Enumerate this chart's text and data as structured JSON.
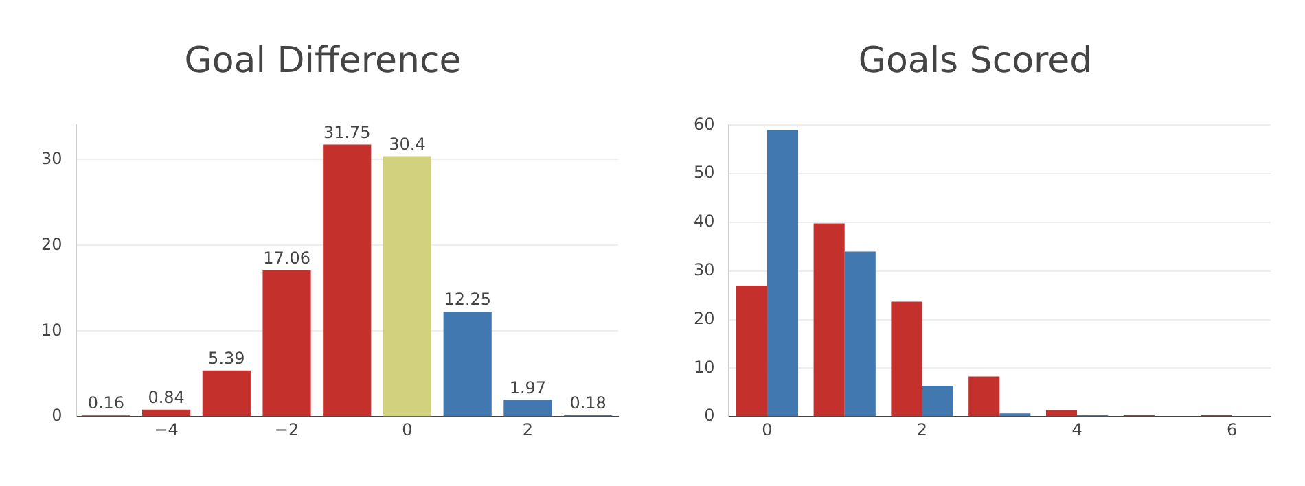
{
  "chart_data": [
    {
      "type": "bar",
      "title": "Goal Difference",
      "x": [
        -5,
        -4,
        -3,
        -2,
        -1,
        0,
        1,
        2,
        3
      ],
      "values": [
        0.16,
        0.84,
        5.39,
        17.06,
        31.75,
        30.4,
        12.25,
        1.97,
        0.18
      ],
      "colors": [
        "#c4302b",
        "#c4302b",
        "#c4302b",
        "#c4302b",
        "#c4302b",
        "#d2d17d",
        "#4178b0",
        "#4178b0",
        "#4178b0"
      ],
      "xlim": [
        -5.5,
        3.5
      ],
      "xticks": [
        -4,
        -2,
        0,
        2
      ],
      "ylim": [
        0,
        34
      ],
      "yticks": [
        0,
        10,
        20,
        30
      ],
      "grid": "y",
      "legend": false,
      "data_labels": true
    },
    {
      "type": "bar",
      "title": "Goals Scored",
      "x": [
        0,
        1,
        2,
        3,
        4,
        5,
        6
      ],
      "series": [
        {
          "color": "#c4302b",
          "values": [
            27,
            39.8,
            23.7,
            8.3,
            1.4,
            0.3,
            0.3
          ]
        },
        {
          "color": "#4178b0",
          "values": [
            59,
            34,
            6.4,
            0.7,
            0.3,
            null,
            null
          ]
        }
      ],
      "xlim": [
        -0.5,
        6.5
      ],
      "xticks": [
        0,
        2,
        4,
        6
      ],
      "ylim": [
        0,
        60
      ],
      "yticks": [
        0,
        10,
        20,
        30,
        40,
        50,
        60
      ],
      "grid": "y",
      "legend": false
    }
  ]
}
